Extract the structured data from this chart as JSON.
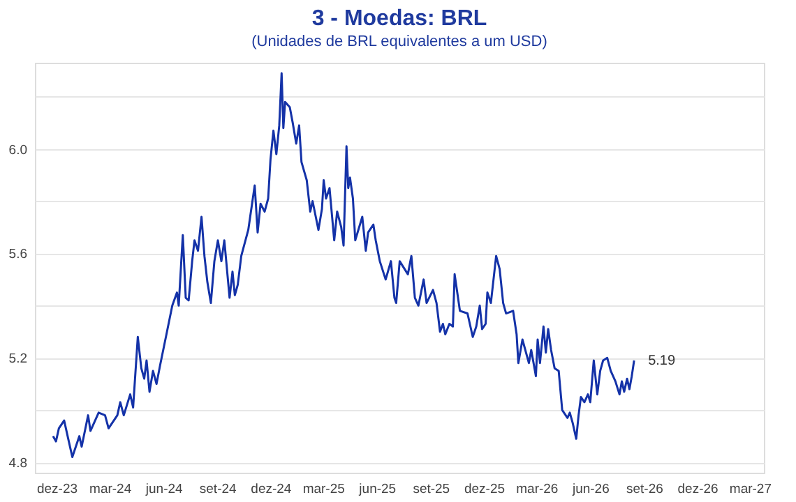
{
  "chart_data": {
    "type": "line",
    "title": "3 - Moedas: BRL",
    "subtitle": "(Unidades de BRL equivalentes a um USD)",
    "x": [
      "2023-11-25",
      "2023-11-30",
      "2023-12-05",
      "2023-12-14",
      "2023-12-22",
      "2023-12-28",
      "2024-01-09",
      "2024-01-13",
      "2024-01-24",
      "2024-01-28",
      "2024-02-11",
      "2024-02-22",
      "2024-02-28",
      "2024-03-14",
      "2024-03-19",
      "2024-03-25",
      "2024-04-05",
      "2024-04-10",
      "2024-04-18",
      "2024-04-24",
      "2024-04-29",
      "2024-05-03",
      "2024-05-08",
      "2024-05-14",
      "2024-05-20",
      "2024-05-26",
      "2024-06-06",
      "2024-06-16",
      "2024-06-24",
      "2024-06-27",
      "2024-07-04",
      "2024-07-09",
      "2024-07-14",
      "2024-07-20",
      "2024-07-24",
      "2024-07-30",
      "2024-08-05",
      "2024-08-10",
      "2024-08-15",
      "2024-08-21",
      "2024-08-27",
      "2024-09-02",
      "2024-09-08",
      "2024-09-13",
      "2024-09-22",
      "2024-09-27",
      "2024-10-01",
      "2024-10-06",
      "2024-10-12",
      "2024-10-24",
      "2024-11-04",
      "2024-11-09",
      "2024-11-14",
      "2024-11-21",
      "2024-11-27",
      "2024-12-01",
      "2024-12-06",
      "2024-12-11",
      "2024-12-16",
      "2024-12-20",
      "2024-12-23",
      "2024-12-26",
      "2025-01-03",
      "2025-01-08",
      "2025-01-14",
      "2025-01-19",
      "2025-01-23",
      "2025-02-01",
      "2025-02-07",
      "2025-02-11",
      "2025-02-21",
      "2025-02-27",
      "2025-03-02",
      "2025-03-06",
      "2025-03-12",
      "2025-03-20",
      "2025-03-25",
      "2025-04-01",
      "2025-04-05",
      "2025-04-10",
      "2025-04-13",
      "2025-04-16",
      "2025-04-21",
      "2025-04-25",
      "2025-05-07",
      "2025-05-13",
      "2025-05-17",
      "2025-05-26",
      "2025-05-30",
      "2025-06-06",
      "2025-06-16",
      "2025-06-25",
      "2025-07-01",
      "2025-07-04",
      "2025-07-10",
      "2025-07-24",
      "2025-07-30",
      "2025-08-05",
      "2025-08-11",
      "2025-08-20",
      "2025-08-25",
      "2025-09-05",
      "2025-09-11",
      "2025-09-17",
      "2025-09-22",
      "2025-09-26",
      "2025-10-03",
      "2025-10-09",
      "2025-10-12",
      "2025-10-21",
      "2025-11-03",
      "2025-11-12",
      "2025-11-18",
      "2025-11-24",
      "2025-11-28",
      "2025-12-04",
      "2025-12-07",
      "2025-12-13",
      "2025-12-22",
      "2025-12-28",
      "2026-01-03",
      "2026-01-08",
      "2026-01-20",
      "2026-01-26",
      "2026-01-29",
      "2026-02-05",
      "2026-02-16",
      "2026-02-20",
      "2026-02-28",
      "2026-03-03",
      "2026-03-07",
      "2026-03-13",
      "2026-03-17",
      "2026-03-21",
      "2026-03-26",
      "2026-04-01",
      "2026-04-08",
      "2026-04-14",
      "2026-04-23",
      "2026-04-27",
      "2026-05-02",
      "2026-05-08",
      "2026-05-12",
      "2026-05-16",
      "2026-05-22",
      "2026-05-28",
      "2026-06-01",
      "2026-06-07",
      "2026-06-13",
      "2026-06-18",
      "2026-06-23",
      "2026-06-30",
      "2026-07-06",
      "2026-07-14",
      "2026-07-21",
      "2026-07-25",
      "2026-07-29",
      "2026-08-03",
      "2026-08-07",
      "2026-08-11",
      "2026-08-15"
    ],
    "series": [
      {
        "color": "#1432a8",
        "values": [
          4.9,
          4.88,
          4.93,
          4.96,
          4.88,
          4.82,
          4.9,
          4.86,
          4.98,
          4.92,
          4.99,
          4.98,
          4.93,
          4.98,
          5.03,
          4.98,
          5.06,
          5.01,
          5.28,
          5.16,
          5.12,
          5.19,
          5.07,
          5.15,
          5.1,
          5.17,
          5.29,
          5.4,
          5.45,
          5.4,
          5.67,
          5.43,
          5.42,
          5.57,
          5.65,
          5.61,
          5.74,
          5.59,
          5.49,
          5.41,
          5.57,
          5.65,
          5.57,
          5.65,
          5.43,
          5.53,
          5.44,
          5.48,
          5.59,
          5.69,
          5.86,
          5.68,
          5.79,
          5.76,
          5.81,
          5.96,
          6.07,
          5.98,
          6.09,
          6.29,
          6.08,
          6.18,
          6.16,
          6.1,
          6.02,
          6.09,
          5.95,
          5.88,
          5.76,
          5.8,
          5.69,
          5.77,
          5.88,
          5.81,
          5.85,
          5.65,
          5.76,
          5.7,
          5.63,
          6.01,
          5.85,
          5.89,
          5.81,
          5.65,
          5.74,
          5.61,
          5.68,
          5.71,
          5.65,
          5.57,
          5.5,
          5.57,
          5.43,
          5.41,
          5.57,
          5.52,
          5.59,
          5.43,
          5.4,
          5.5,
          5.41,
          5.46,
          5.41,
          5.3,
          5.33,
          5.29,
          5.33,
          5.32,
          5.52,
          5.38,
          5.37,
          5.28,
          5.32,
          5.4,
          5.31,
          5.33,
          5.45,
          5.41,
          5.59,
          5.54,
          5.41,
          5.37,
          5.38,
          5.29,
          5.18,
          5.27,
          5.18,
          5.23,
          5.13,
          5.27,
          5.18,
          5.32,
          5.22,
          5.31,
          5.23,
          5.16,
          5.15,
          5.0,
          4.97,
          4.99,
          4.95,
          4.89,
          4.98,
          5.05,
          5.03,
          5.06,
          5.03,
          5.19,
          5.06,
          5.15,
          5.19,
          5.2,
          5.15,
          5.11,
          5.06,
          5.11,
          5.07,
          5.12,
          5.08,
          5.13,
          5.19
        ]
      }
    ],
    "xlim": [
      "2023-10-25",
      "2027-03-25"
    ],
    "xticks": [
      {
        "value": "2023-12-01",
        "label": "dez-23"
      },
      {
        "value": "2024-03-01",
        "label": "mar-24"
      },
      {
        "value": "2024-06-01",
        "label": "jun-24"
      },
      {
        "value": "2024-09-01",
        "label": "set-24"
      },
      {
        "value": "2024-12-01",
        "label": "dez-24"
      },
      {
        "value": "2025-03-01",
        "label": "mar-25"
      },
      {
        "value": "2025-06-01",
        "label": "jun-25"
      },
      {
        "value": "2025-09-01",
        "label": "set-25"
      },
      {
        "value": "2025-12-01",
        "label": "dez-25"
      },
      {
        "value": "2026-03-01",
        "label": "mar-26"
      },
      {
        "value": "2026-06-01",
        "label": "jun-26"
      },
      {
        "value": "2026-09-01",
        "label": "set-26"
      },
      {
        "value": "2026-12-01",
        "label": "dez-26"
      },
      {
        "value": "2027-03-01",
        "label": "mar-27"
      }
    ],
    "ylim": [
      4.76,
      6.33
    ],
    "yticks": [
      {
        "value": 4.8,
        "label": "4.8"
      },
      {
        "value": 5.0,
        "label": null
      },
      {
        "value": 5.2,
        "label": "5.2"
      },
      {
        "value": 5.4,
        "label": null
      },
      {
        "value": 5.6,
        "label": "5.6"
      },
      {
        "value": 5.8,
        "label": null
      },
      {
        "value": 6.0,
        "label": "6.0"
      },
      {
        "value": 6.2,
        "label": null
      }
    ],
    "grid": "y",
    "legend": false,
    "marker": "none",
    "line_style": "solid",
    "annotations": [
      {
        "text": "5.19",
        "x": "2026-08-15",
        "y": 5.19
      }
    ]
  }
}
